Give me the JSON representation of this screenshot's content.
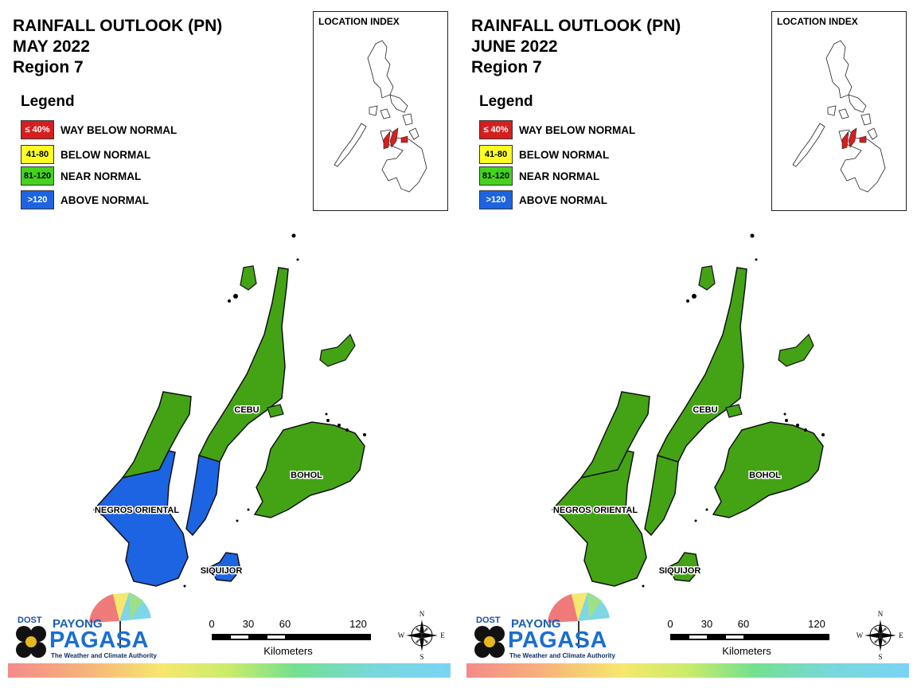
{
  "colors": {
    "way_below": "#d71e1e",
    "below": "#ffff22",
    "near": "#44a315",
    "above": "#1d64e3"
  },
  "legend": {
    "title": "Legend",
    "items": [
      {
        "swatch": "≤ 40%",
        "label": "WAY BELOW NORMAL",
        "color": "#d71e1e",
        "text_color": "#ffffff"
      },
      {
        "swatch": "41-80",
        "label": "BELOW NORMAL",
        "color": "#ffff22",
        "text_color": "#000000"
      },
      {
        "swatch": "81-120",
        "label": "NEAR NORMAL",
        "color": "#44d41e",
        "text_color": "#000000"
      },
      {
        "swatch": ">120",
        "label": "ABOVE NORMAL",
        "color": "#1d64e3",
        "text_color": "#ffffff"
      }
    ]
  },
  "location_index": "LOCATION INDEX",
  "map_labels": {
    "cebu": "CEBU",
    "bohol": "BOHOL",
    "negros": "NEGROS ORIENTAL",
    "siquijor": "SIQUIJOR"
  },
  "scale": {
    "ticks": [
      "0",
      "30",
      "60",
      "120"
    ],
    "unit": "Kilometers"
  },
  "compass": {
    "n": "N",
    "s": "S",
    "e": "E",
    "w": "W"
  },
  "logo": {
    "dost": "DOST",
    "payong": "PAYONG",
    "pagasa": "PAGASA",
    "tagline": "The Weather and Climate Authority"
  },
  "panels": [
    {
      "title_line1": "RAINFALL OUTLOOK (PN)",
      "title_line2": "MAY 2022",
      "title_line3": "Region 7",
      "categories": {
        "cebu_north": "near",
        "cebu_south": "above",
        "bohol": "near",
        "negros_north": "near",
        "negros_south": "above",
        "siquijor": "above"
      }
    },
    {
      "title_line1": "RAINFALL OUTLOOK (PN)",
      "title_line2": "JUNE 2022",
      "title_line3": "Region 7",
      "categories": {
        "cebu_north": "near",
        "cebu_south": "near",
        "bohol": "near",
        "negros_north": "near",
        "negros_south": "near",
        "siquijor": "near"
      }
    }
  ]
}
